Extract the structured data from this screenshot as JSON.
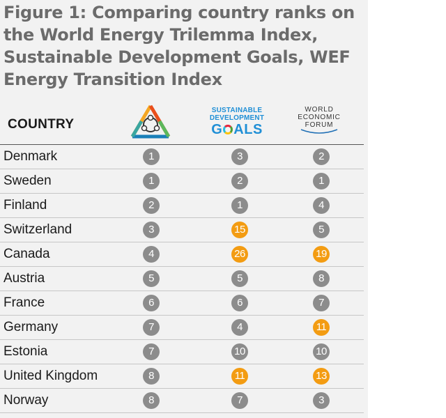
{
  "title": "Figure 1:  Comparing country ranks on the World Energy Trilemma Index, Sustainable Development Goals, WEF Energy Transition Index",
  "header": {
    "country_label": "COUNTRY",
    "sdg_logo": {
      "line1": "SUSTAINABLE",
      "line2": "DEVELOPMENT",
      "goals_prefix": "G",
      "goals_suffix": "ALS"
    },
    "wef_logo": {
      "line1": "WORLD",
      "line2": "ECONOMIC",
      "line3": "FORUM"
    }
  },
  "colors": {
    "default_rank": "#8c8c8c",
    "highlight_rank": "#f39c12"
  },
  "rows": [
    {
      "country": "Denmark",
      "trilemma": "1",
      "sdg": "3",
      "wef": "2",
      "hl": [
        false,
        false,
        false
      ]
    },
    {
      "country": "Sweden",
      "trilemma": "1",
      "sdg": "2",
      "wef": "1",
      "hl": [
        false,
        false,
        false
      ]
    },
    {
      "country": "Finland",
      "trilemma": "2",
      "sdg": "1",
      "wef": "4",
      "hl": [
        false,
        false,
        false
      ]
    },
    {
      "country": "Switzerland",
      "trilemma": "3",
      "sdg": "15",
      "wef": "5",
      "hl": [
        false,
        true,
        false
      ]
    },
    {
      "country": "Canada",
      "trilemma": "4",
      "sdg": "26",
      "wef": "19",
      "hl": [
        false,
        true,
        true
      ]
    },
    {
      "country": "Austria",
      "trilemma": "5",
      "sdg": "5",
      "wef": "8",
      "hl": [
        false,
        false,
        false
      ]
    },
    {
      "country": "France",
      "trilemma": "6",
      "sdg": "6",
      "wef": "7",
      "hl": [
        false,
        false,
        false
      ]
    },
    {
      "country": "Germany",
      "trilemma": "7",
      "sdg": "4",
      "wef": "11",
      "hl": [
        false,
        false,
        true
      ]
    },
    {
      "country": "Estonia",
      "trilemma": "7",
      "sdg": "10",
      "wef": "10",
      "hl": [
        false,
        false,
        false
      ]
    },
    {
      "country": "United Kingdom",
      "trilemma": "8",
      "sdg": "11",
      "wef": "13",
      "hl": [
        false,
        true,
        true
      ]
    },
    {
      "country": "Norway",
      "trilemma": "8",
      "sdg": "7",
      "wef": "3",
      "hl": [
        false,
        false,
        false
      ]
    }
  ]
}
